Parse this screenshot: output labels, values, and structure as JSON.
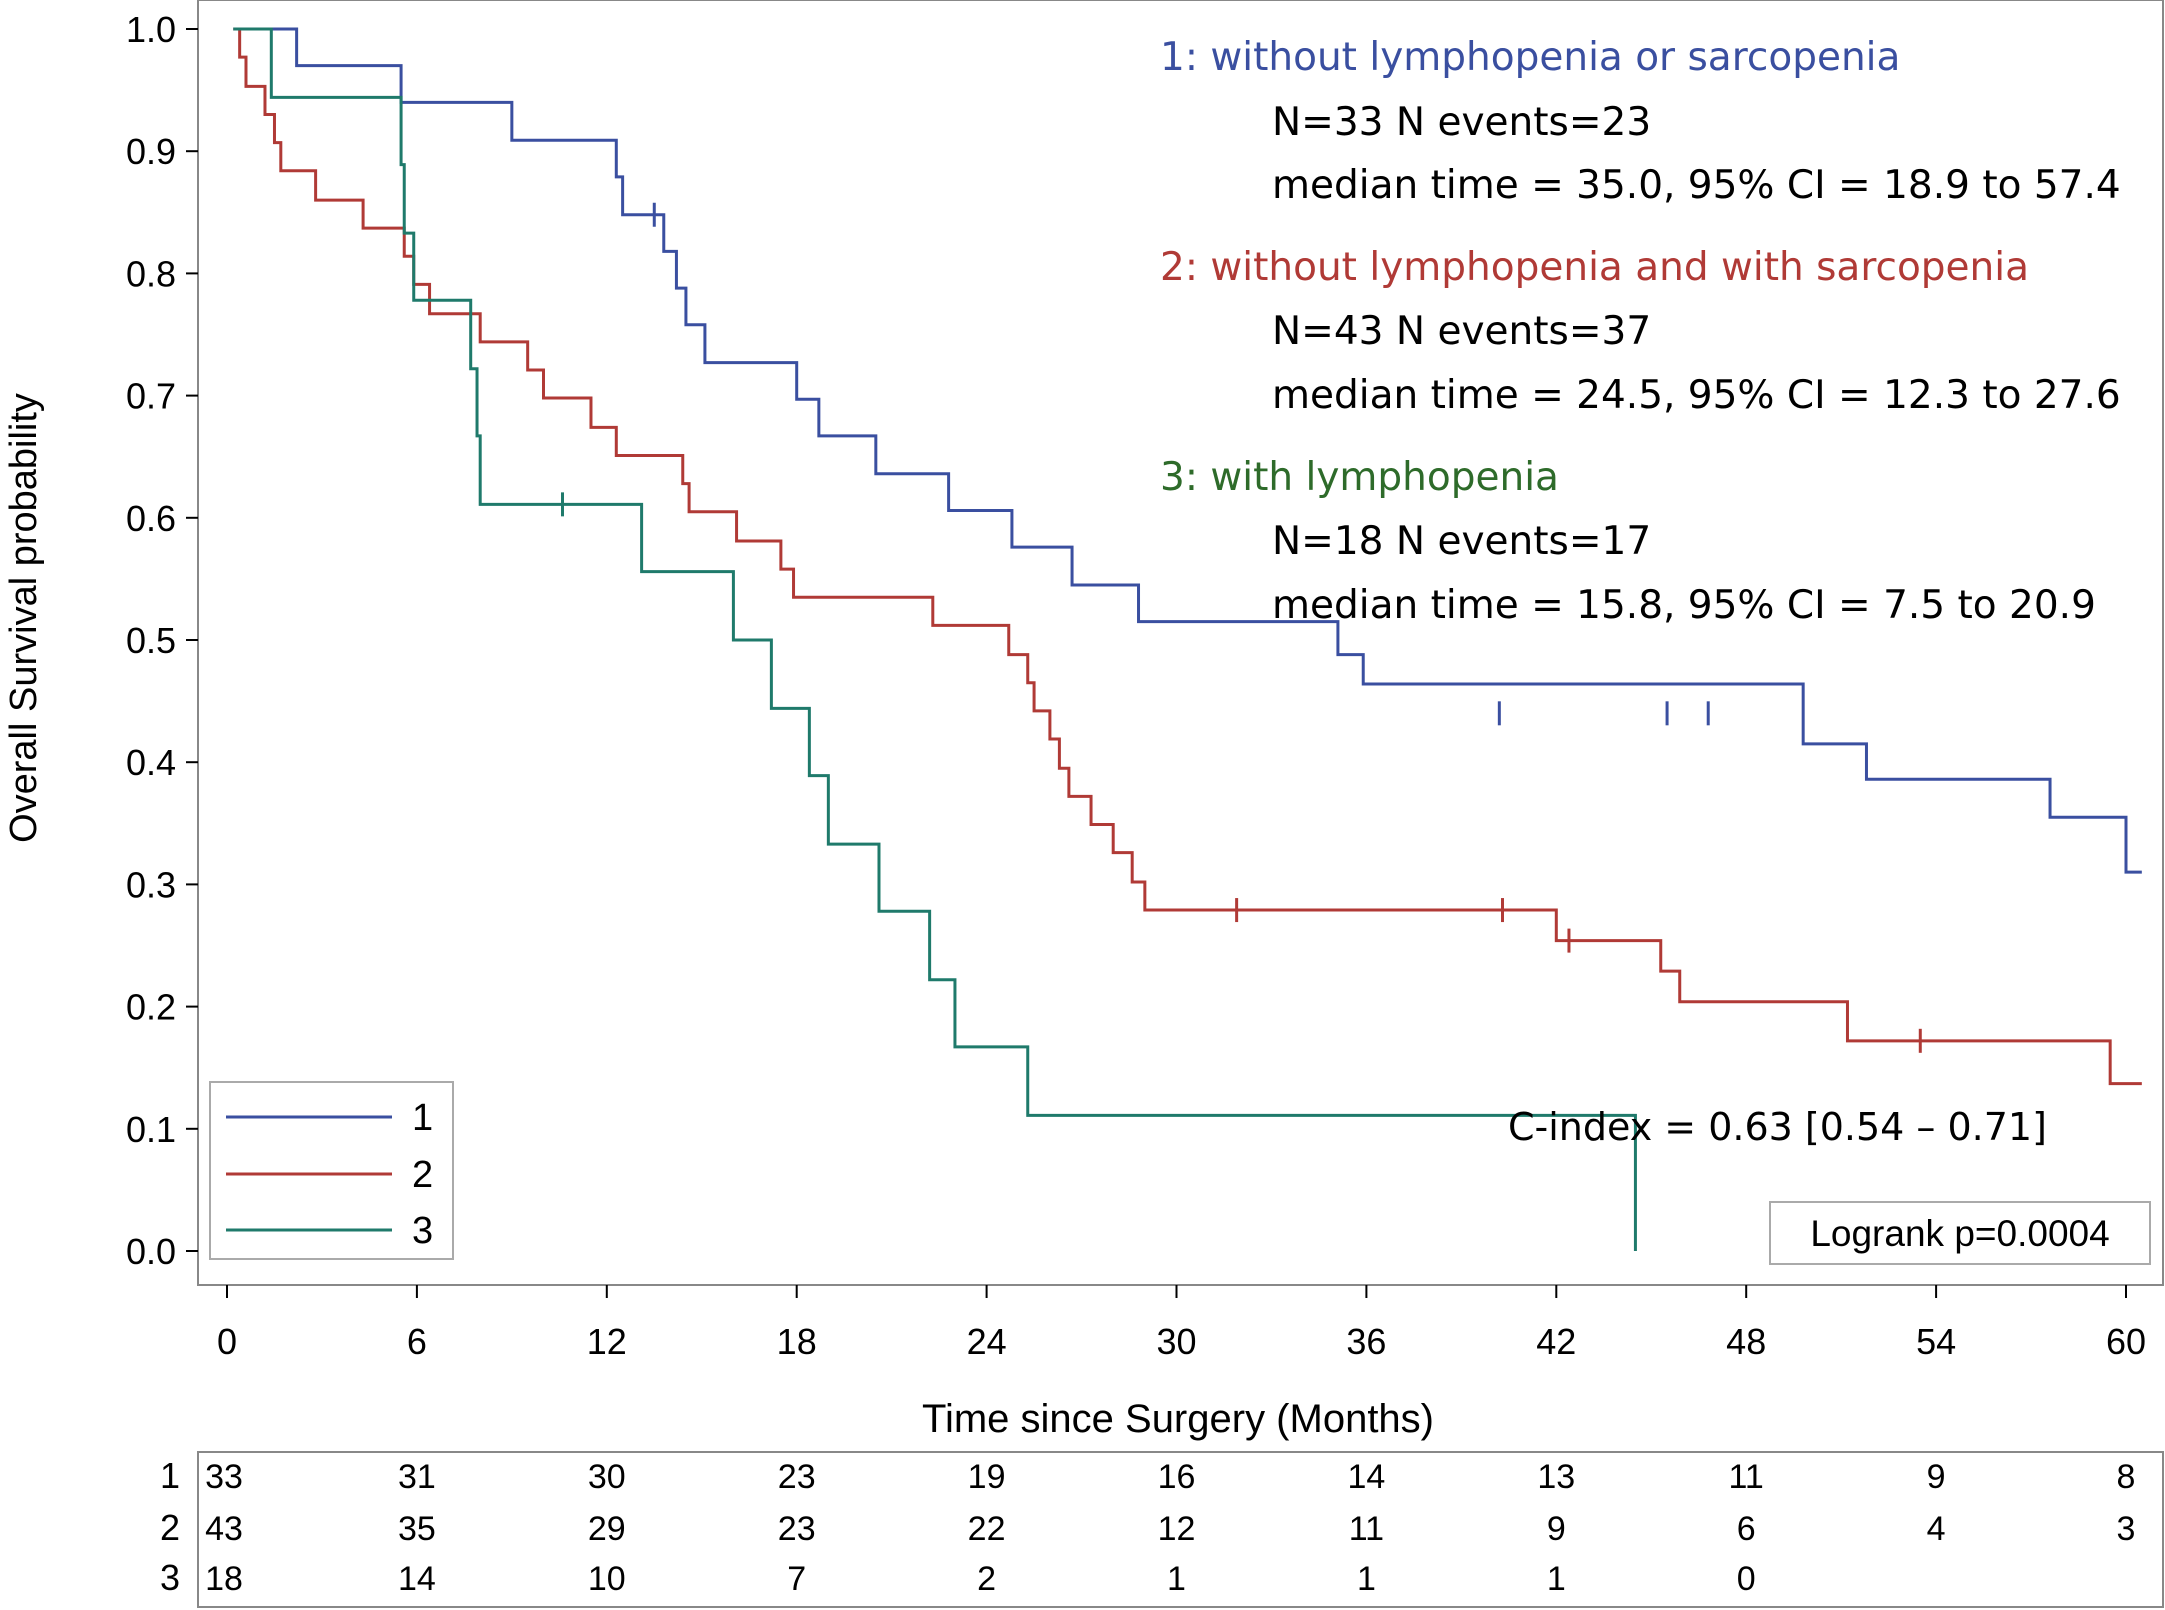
{
  "chart_data": {
    "type": "line",
    "subtype": "kaplan-meier step",
    "title": "",
    "xlabel": "Time since Surgery (Months)",
    "ylabel": "Overall Survival probability",
    "xlim": [
      0,
      60.5
    ],
    "ylim": [
      0,
      1.0
    ],
    "x_ticks": [
      "0",
      "6",
      "12",
      "18",
      "24",
      "30",
      "36",
      "42",
      "48",
      "54",
      "60"
    ],
    "x_tick_values": [
      0,
      6,
      12,
      18,
      24,
      30,
      36,
      42,
      48,
      54,
      60
    ],
    "y_ticks": [
      "0.0",
      "0.1",
      "0.2",
      "0.3",
      "0.4",
      "0.5",
      "0.6",
      "0.7",
      "0.8",
      "0.9",
      "1.0"
    ],
    "y_tick_values": [
      0,
      0.1,
      0.2,
      0.3,
      0.4,
      0.5,
      0.6,
      0.7,
      0.8,
      0.9,
      1.0
    ],
    "series": [
      {
        "name": "1",
        "color": "#3a4fa0",
        "steps": [
          [
            0.2,
            1.0
          ],
          [
            2.2,
            0.97
          ],
          [
            5.5,
            0.94
          ],
          [
            9.0,
            0.909
          ],
          [
            12.3,
            0.879
          ],
          [
            12.5,
            0.848
          ],
          [
            13.8,
            0.818
          ],
          [
            14.2,
            0.788
          ],
          [
            14.5,
            0.758
          ],
          [
            15.1,
            0.727
          ],
          [
            18.0,
            0.697
          ],
          [
            18.7,
            0.667
          ],
          [
            20.5,
            0.636
          ],
          [
            22.8,
            0.606
          ],
          [
            24.8,
            0.576
          ],
          [
            26.7,
            0.545
          ],
          [
            28.8,
            0.515
          ],
          [
            35.1,
            0.488
          ],
          [
            35.9,
            0.464
          ],
          [
            49.8,
            0.415
          ],
          [
            51.8,
            0.386
          ],
          [
            57.6,
            0.355
          ],
          [
            60.0,
            0.31
          ],
          [
            60.5,
            0.31
          ]
        ],
        "censor_x": [
          13.5,
          40.2,
          45.5,
          46.8
        ],
        "censor_y": [
          0.848,
          0.44,
          0.44,
          0.44
        ]
      },
      {
        "name": "2",
        "color": "#b03a36",
        "steps": [
          [
            0.2,
            1.0
          ],
          [
            0.4,
            0.977
          ],
          [
            0.6,
            0.953
          ],
          [
            1.2,
            0.93
          ],
          [
            1.5,
            0.907
          ],
          [
            1.7,
            0.884
          ],
          [
            2.8,
            0.86
          ],
          [
            4.3,
            0.837
          ],
          [
            5.6,
            0.814
          ],
          [
            5.9,
            0.791
          ],
          [
            6.4,
            0.767
          ],
          [
            8.0,
            0.744
          ],
          [
            9.5,
            0.721
          ],
          [
            10.0,
            0.698
          ],
          [
            11.5,
            0.674
          ],
          [
            12.3,
            0.651
          ],
          [
            14.4,
            0.628
          ],
          [
            14.6,
            0.605
          ],
          [
            16.1,
            0.581
          ],
          [
            17.5,
            0.558
          ],
          [
            17.9,
            0.535
          ],
          [
            22.3,
            0.512
          ],
          [
            24.7,
            0.488
          ],
          [
            25.3,
            0.465
          ],
          [
            25.5,
            0.442
          ],
          [
            26.0,
            0.419
          ],
          [
            26.3,
            0.395
          ],
          [
            26.6,
            0.372
          ],
          [
            27.3,
            0.349
          ],
          [
            28.0,
            0.326
          ],
          [
            28.6,
            0.302
          ],
          [
            29.0,
            0.279
          ],
          [
            42.0,
            0.254
          ],
          [
            45.3,
            0.229
          ],
          [
            45.9,
            0.204
          ],
          [
            51.2,
            0.172
          ],
          [
            59.5,
            0.137
          ],
          [
            60.5,
            0.137
          ]
        ],
        "censor_x": [
          31.9,
          40.3,
          42.4,
          53.5
        ],
        "censor_y": [
          0.279,
          0.279,
          0.254,
          0.172
        ]
      },
      {
        "name": "3",
        "color": "#1f7a6b",
        "steps": [
          [
            0.2,
            1.0
          ],
          [
            1.4,
            0.944
          ],
          [
            5.5,
            0.889
          ],
          [
            5.6,
            0.833
          ],
          [
            5.9,
            0.778
          ],
          [
            7.7,
            0.722
          ],
          [
            7.9,
            0.667
          ],
          [
            8.0,
            0.611
          ],
          [
            13.1,
            0.556
          ],
          [
            16.0,
            0.5
          ],
          [
            17.2,
            0.444
          ],
          [
            18.4,
            0.389
          ],
          [
            19.0,
            0.333
          ],
          [
            20.6,
            0.278
          ],
          [
            22.2,
            0.222
          ],
          [
            23.0,
            0.167
          ],
          [
            25.3,
            0.111
          ],
          [
            44.5,
            0.0
          ]
        ],
        "censor_x": [
          10.6
        ],
        "censor_y": [
          0.611
        ]
      }
    ],
    "legend": {
      "placement": "bottom-left",
      "entries": [
        "1",
        "2",
        "3"
      ]
    },
    "annotations": {
      "g1_title": "1: without lymphopenia or sarcopenia",
      "g1_counts": "N=33 N events=23",
      "g1_median": "median time = 35.0, 95% CI = 18.9 to 57.4",
      "g2_title": "2: without lymphopenia and with sarcopenia",
      "g2_counts": "N=43 N events=37",
      "g2_median": "median time = 24.5, 95% CI = 12.3 to 27.6",
      "g3_title": "3: with lymphopenia",
      "g3_counts": "N=18 N events=17",
      "g3_median": "median time = 15.8, 95% CI = 7.5 to 20.9",
      "cindex": "C-index = 0.63 [0.54 – 0.71]",
      "logrank": "Logrank p=0.0004"
    },
    "risk_table": {
      "rows": [
        {
          "label": "1",
          "values": [
            "33",
            "31",
            "30",
            "23",
            "19",
            "16",
            "14",
            "13",
            "11",
            "9",
            "8"
          ]
        },
        {
          "label": "2",
          "values": [
            "43",
            "35",
            "29",
            "23",
            "22",
            "12",
            "11",
            "9",
            "6",
            "4",
            "3"
          ]
        },
        {
          "label": "3",
          "values": [
            "18",
            "14",
            "10",
            "7",
            "2",
            "1",
            "1",
            "1",
            "0",
            "",
            ""
          ]
        }
      ]
    }
  }
}
